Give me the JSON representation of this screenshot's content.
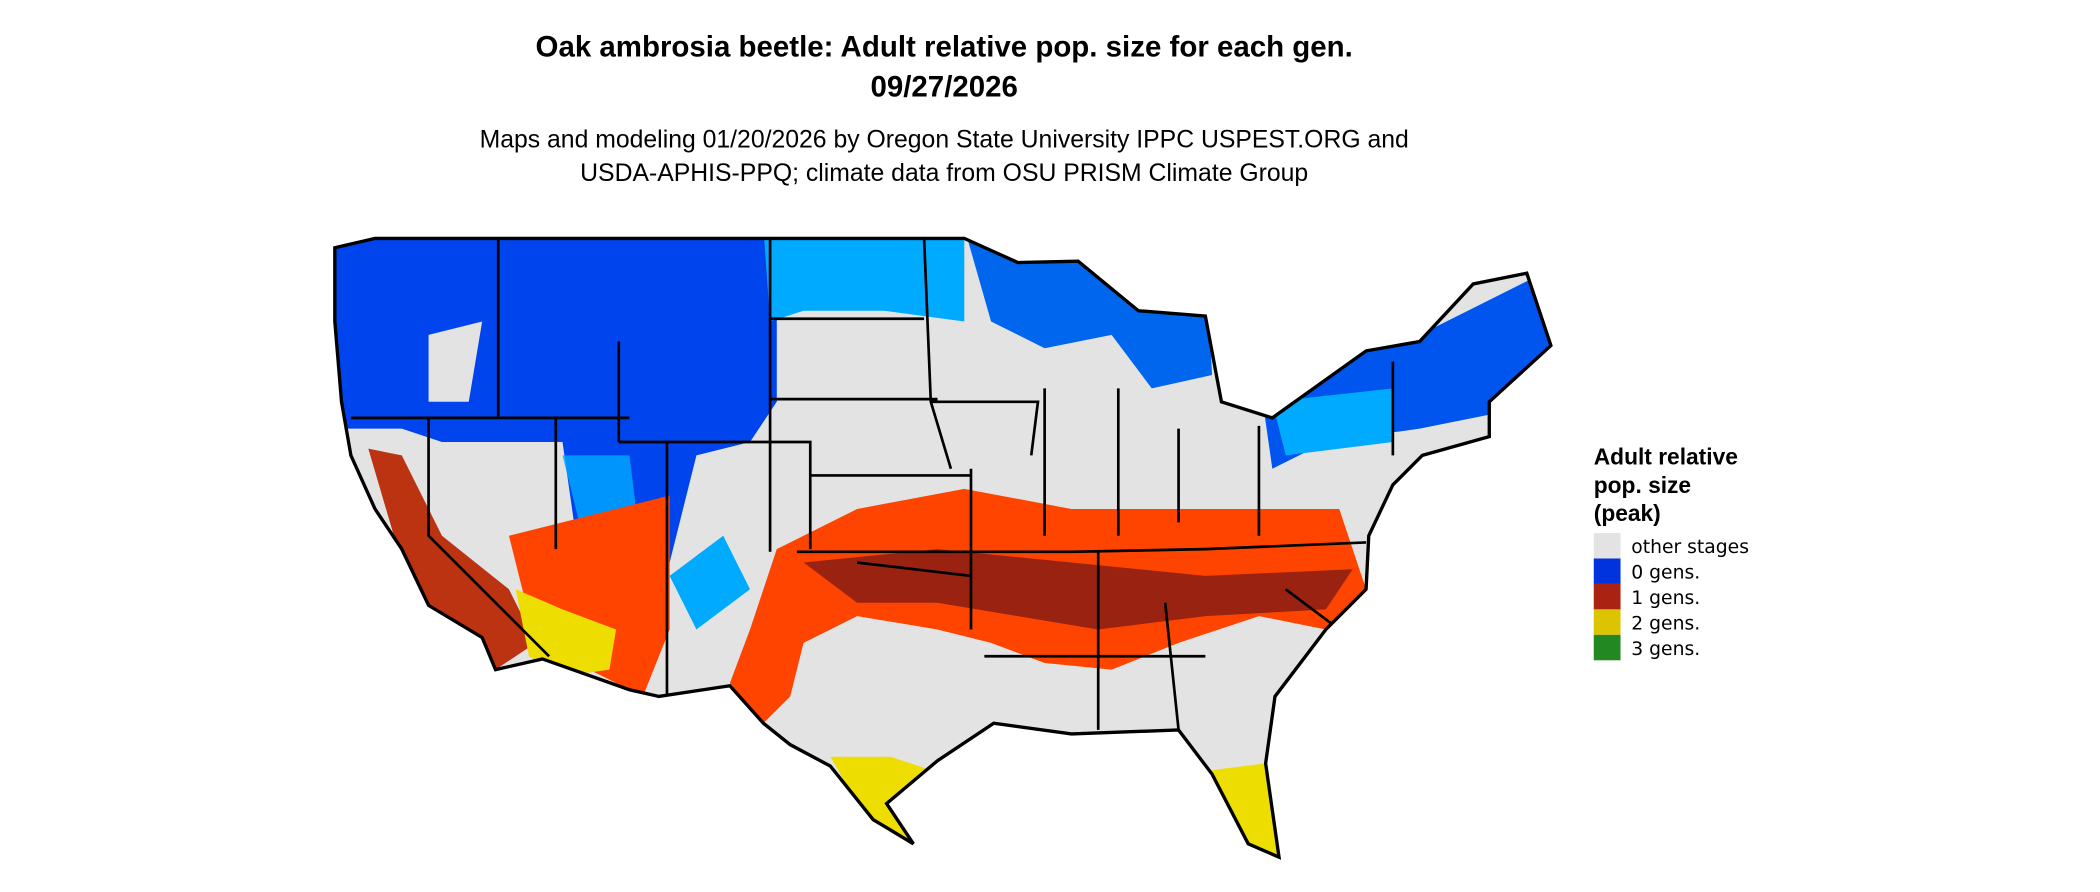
{
  "title": "Oak ambrosia beetle: Adult relative pop. size for each gen.",
  "date": "09/27/2026",
  "subtitle_line1": "Maps and modeling 01/20/2026 by Oregon State University IPPC USPEST.ORG and",
  "subtitle_line2": "USDA-APHIS-PPQ; climate data from OSU PRISM Climate Group",
  "legend": {
    "title_lines": [
      "Adult relative",
      "pop. size",
      "(peak)"
    ],
    "items": [
      {
        "label": "other stages",
        "color": "#e3e3e3"
      },
      {
        "label": "0 gens.",
        "color": "#0033dd"
      },
      {
        "label": "1 gens.",
        "color": "#aa2211"
      },
      {
        "label": "2 gens.",
        "color": "#ddc400"
      },
      {
        "label": "3 gens.",
        "color": "#228822"
      }
    ]
  },
  "map": {
    "region": "Contiguous United States",
    "colors": {
      "light_blue": "#00aaff",
      "orange_red": "#ff4400"
    }
  }
}
